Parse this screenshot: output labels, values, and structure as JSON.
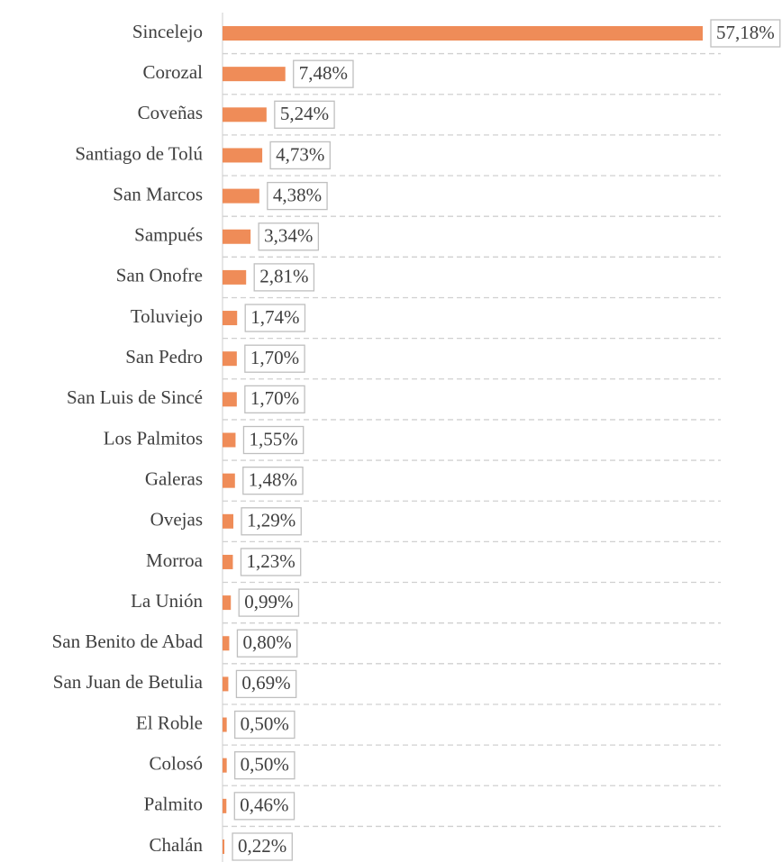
{
  "chart_data": {
    "type": "bar",
    "orientation": "horizontal",
    "color": "#ef8c58",
    "categories": [
      "Sincelejo",
      "Corozal",
      "Coveñas",
      "Santiago de Tolú",
      "San Marcos",
      "Sampués",
      "San Onofre",
      "Toluviejo",
      "San Pedro",
      "San Luis de Sincé",
      "Los Palmitos",
      "Galeras",
      "Ovejas",
      "Morroa",
      "La Unión",
      "San Benito de Abad",
      "San Juan de Betulia",
      "El Roble",
      "Colosó",
      "Palmito",
      "Chalán"
    ],
    "values": [
      57.18,
      7.48,
      5.24,
      4.73,
      4.38,
      3.34,
      2.81,
      1.74,
      1.7,
      1.7,
      1.55,
      1.48,
      1.29,
      1.23,
      0.99,
      0.8,
      0.69,
      0.5,
      0.5,
      0.46,
      0.22
    ],
    "value_labels": [
      "57,18%",
      "7,48%",
      "5,24%",
      "4,73%",
      "4,38%",
      "3,34%",
      "2,81%",
      "1,74%",
      "1,70%",
      "1,70%",
      "1,55%",
      "1,48%",
      "1,29%",
      "1,23%",
      "0,99%",
      "0,80%",
      "0,69%",
      "0,50%",
      "0,50%",
      "0,46%",
      "0,22%"
    ]
  }
}
